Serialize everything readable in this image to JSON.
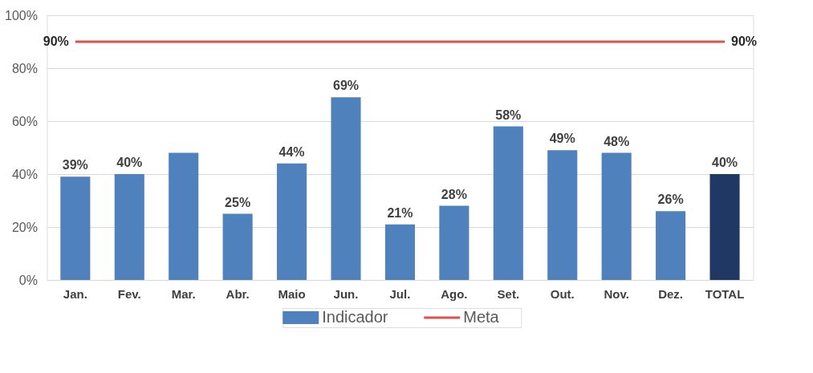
{
  "chart_data": {
    "type": "bar",
    "categories": [
      "Jan.",
      "Fev.",
      "Mar.",
      "Abr.",
      "Maio",
      "Jun.",
      "Jul.",
      "Ago.",
      "Set.",
      "Out.",
      "Nov.",
      "Dez.",
      "TOTAL"
    ],
    "series": [
      {
        "name": "Indicador",
        "type": "bar",
        "color": "#4f81bd",
        "colors": [
          "#4f81bd",
          "#4f81bd",
          "#4f81bd",
          "#4f81bd",
          "#4f81bd",
          "#4f81bd",
          "#4f81bd",
          "#4f81bd",
          "#4f81bd",
          "#4f81bd",
          "#4f81bd",
          "#4f81bd",
          "#1f3864"
        ],
        "values": [
          39,
          40,
          48,
          25,
          44,
          69,
          21,
          28,
          58,
          49,
          48,
          26,
          40
        ],
        "value_labels": [
          "39%",
          "40%",
          null,
          "25%",
          "44%",
          "69%",
          "21%",
          "28%",
          "58%",
          "49%",
          "48%",
          "26%",
          "40%"
        ]
      },
      {
        "name": "Meta",
        "type": "line",
        "color": "#d9534f",
        "values": [
          90,
          90,
          90,
          90,
          90,
          90,
          90,
          90,
          90,
          90,
          90,
          90,
          90
        ]
      }
    ],
    "annotations": [
      "90%",
      "90%"
    ],
    "ylim": [
      0,
      100
    ],
    "yticks": [
      {
        "value": 0,
        "label": "0%"
      },
      {
        "value": 20,
        "label": "20%"
      },
      {
        "value": 40,
        "label": "40%"
      },
      {
        "value": 60,
        "label": "60%"
      },
      {
        "value": 80,
        "label": "80%"
      },
      {
        "value": 100,
        "label": "100%"
      }
    ],
    "grid": "y",
    "legend": "bottom"
  }
}
